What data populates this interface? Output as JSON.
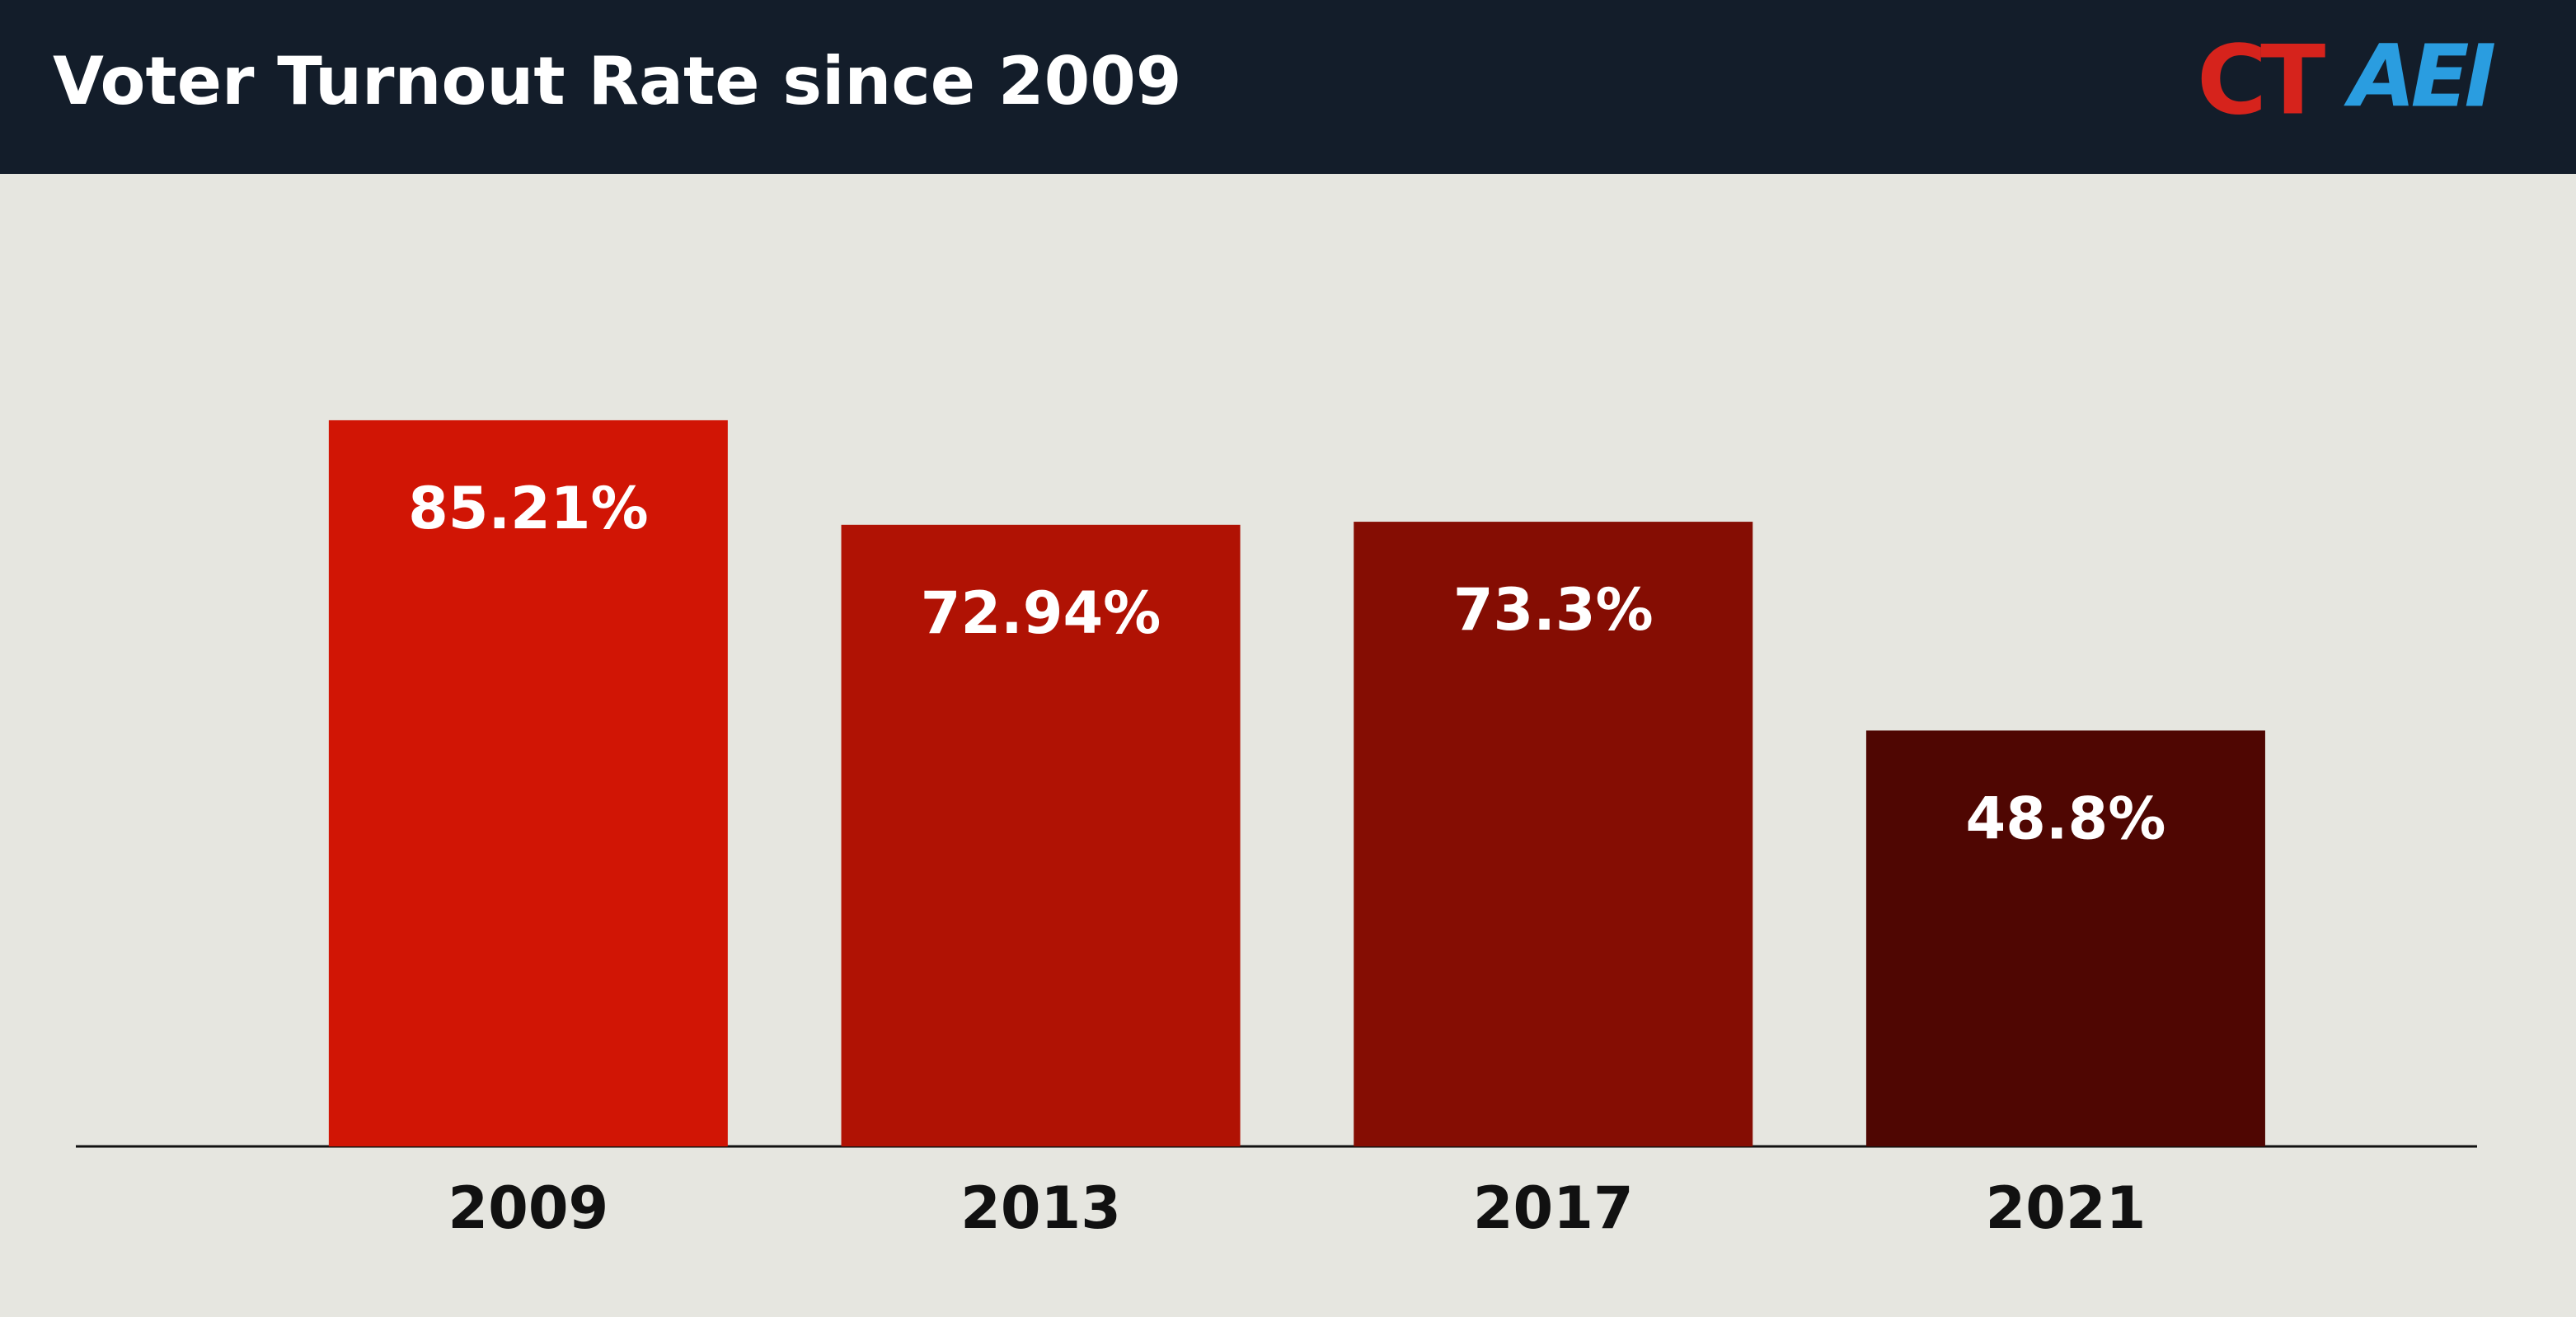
{
  "chart_data": {
    "type": "bar",
    "title": "Voter Turnout Rate since 2009",
    "logos": [
      "CT",
      "AEI"
    ],
    "categories": [
      "2009",
      "2013",
      "2017",
      "2021"
    ],
    "values": [
      85.21,
      72.94,
      73.3,
      48.8
    ],
    "value_labels": [
      "85.21%",
      "72.94%",
      "73.3%",
      "48.8%"
    ],
    "colors": [
      "#d11505",
      "#b01204",
      "#850d03",
      "#4f0602"
    ],
    "ylim": [
      0,
      100
    ]
  }
}
